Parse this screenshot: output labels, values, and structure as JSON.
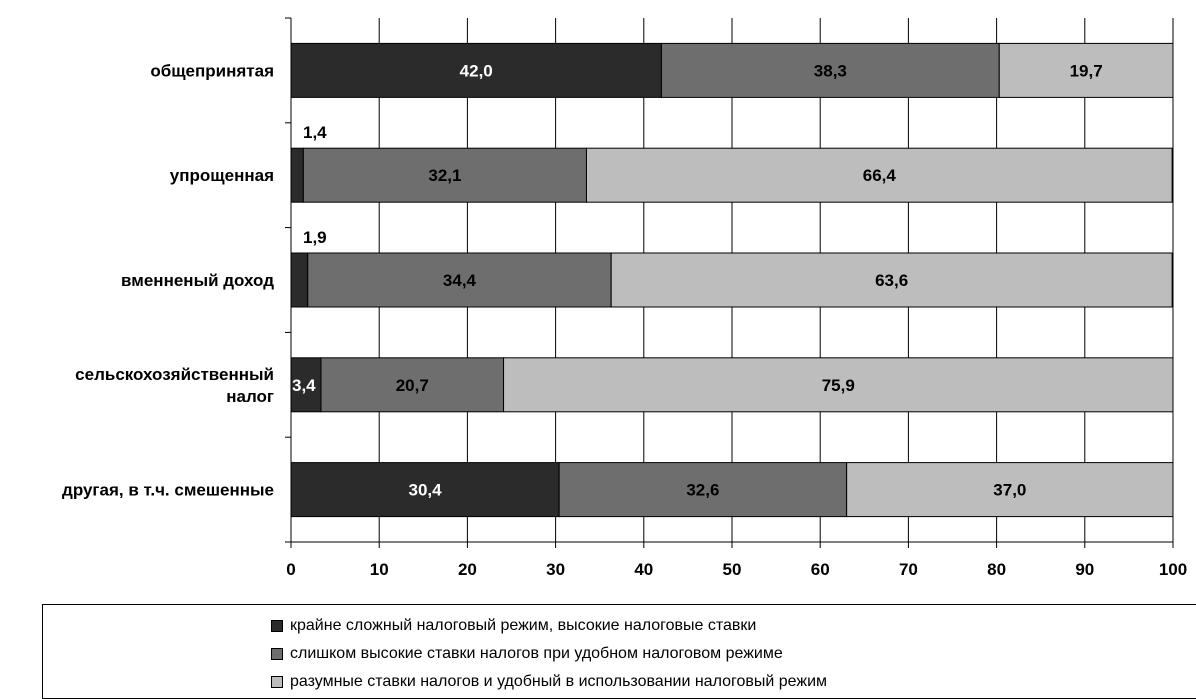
{
  "chart_data": {
    "type": "bar",
    "orientation": "horizontal",
    "stacked": true,
    "categories": [
      "общепринятая",
      "упрощенная",
      "вменненый доход",
      "сельскохозяйственный налог",
      "другая, в т.ч. смешенные"
    ],
    "category_lines": [
      [
        "общепринятая"
      ],
      [
        "упрощенная"
      ],
      [
        "вменненый доход"
      ],
      [
        "сельскохозяйственный",
        "налог"
      ],
      [
        "другая, в т.ч. смешенные"
      ]
    ],
    "series": [
      {
        "name": "крайне сложный налоговый режим, высокие налоговые ставки",
        "color": "#2b2b2b",
        "label_color": "#ffffff",
        "values": [
          42.0,
          1.4,
          1.9,
          3.4,
          30.4
        ],
        "labels": [
          "42,0",
          "1,4",
          "1,9",
          "3,4",
          "30,4"
        ]
      },
      {
        "name": "слишком высокие ставки налогов при удобном налоговом режиме",
        "color": "#6e6e6e",
        "label_color": "#000000",
        "values": [
          38.3,
          32.1,
          34.4,
          20.7,
          32.6
        ],
        "labels": [
          "38,3",
          "32,1",
          "34,4",
          "20,7",
          "32,6"
        ]
      },
      {
        "name": "разумные ставки налогов и удобный в использовании налоговый режим",
        "color": "#bdbdbd",
        "label_color": "#000000",
        "values": [
          19.7,
          66.4,
          63.6,
          75.9,
          37.0
        ],
        "labels": [
          "19,7",
          "66,4",
          "63,6",
          "75,9",
          "37,0"
        ]
      }
    ],
    "xlim": [
      0,
      100
    ],
    "xticks": [
      "0",
      "10",
      "20",
      "30",
      "40",
      "50",
      "60",
      "70",
      "80",
      "90",
      "100"
    ],
    "grid": true,
    "legend_position": "bottom"
  }
}
